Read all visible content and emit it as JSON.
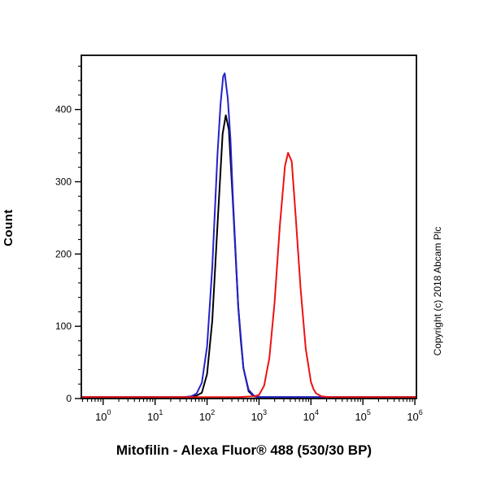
{
  "figure": {
    "ylabel": "Count",
    "xlabel": "Mitofilin - Alexa Fluor® 488 (530/30 BP)",
    "copyright": "Copyright (c) 2018 Abcam Plc"
  },
  "chart_data": {
    "type": "line",
    "subtype": "flow-cytometry-histogram-overlay",
    "title": "",
    "xlabel": "Mitofilin - Alexa Fluor® 488 (530/30 BP)",
    "ylabel": "Count",
    "x_scale": "log10",
    "xlim_log10": [
      -0.42,
      6.03
    ],
    "ylim": [
      0,
      475
    ],
    "x_tick_base": "10",
    "x_tick_exponents": [
      0,
      1,
      2,
      3,
      4,
      5,
      6
    ],
    "y_ticks": [
      0,
      100,
      200,
      300,
      400
    ],
    "y_minor_step": 20,
    "grid": false,
    "legend": false,
    "frame_color": "#000000",
    "peaks": [
      {
        "series": "blue-sample",
        "x_approx": 220,
        "peak_count": 450
      },
      {
        "series": "black-control",
        "x_approx": 230,
        "peak_count": 392
      },
      {
        "series": "red-sample",
        "x_approx": 3600,
        "peak_count": 340
      }
    ],
    "series": [
      {
        "name": "black-control",
        "color": "#000000",
        "points_log10x_count": [
          [
            -0.42,
            2
          ],
          [
            1.2,
            2
          ],
          [
            1.6,
            2
          ],
          [
            1.8,
            4
          ],
          [
            1.9,
            8
          ],
          [
            2.0,
            34
          ],
          [
            2.1,
            108
          ],
          [
            2.2,
            240
          ],
          [
            2.3,
            366
          ],
          [
            2.36,
            392
          ],
          [
            2.42,
            372
          ],
          [
            2.5,
            268
          ],
          [
            2.6,
            127
          ],
          [
            2.65,
            80
          ],
          [
            2.7,
            42
          ],
          [
            2.8,
            10
          ],
          [
            2.9,
            3
          ],
          [
            3.0,
            2
          ],
          [
            4.5,
            2
          ],
          [
            6.03,
            2
          ]
        ]
      },
      {
        "name": "blue-sample",
        "color": "#2222cc",
        "points_log10x_count": [
          [
            -0.42,
            2
          ],
          [
            1.2,
            2
          ],
          [
            1.55,
            2
          ],
          [
            1.7,
            3
          ],
          [
            1.8,
            7
          ],
          [
            1.9,
            22
          ],
          [
            2.0,
            72
          ],
          [
            2.1,
            182
          ],
          [
            2.2,
            338
          ],
          [
            2.26,
            408
          ],
          [
            2.31,
            446
          ],
          [
            2.34,
            450
          ],
          [
            2.4,
            415
          ],
          [
            2.45,
            360
          ],
          [
            2.5,
            275
          ],
          [
            2.6,
            128
          ],
          [
            2.7,
            42
          ],
          [
            2.8,
            12
          ],
          [
            2.9,
            4
          ],
          [
            3.0,
            2
          ],
          [
            4.5,
            2
          ],
          [
            6.03,
            2
          ]
        ]
      },
      {
        "name": "red-sample",
        "color": "#ee1111",
        "points_log10x_count": [
          [
            -0.42,
            2
          ],
          [
            2.0,
            2
          ],
          [
            2.6,
            2
          ],
          [
            2.9,
            3
          ],
          [
            3.0,
            5
          ],
          [
            3.1,
            18
          ],
          [
            3.2,
            56
          ],
          [
            3.3,
            133
          ],
          [
            3.4,
            238
          ],
          [
            3.5,
            322
          ],
          [
            3.56,
            340
          ],
          [
            3.63,
            328
          ],
          [
            3.7,
            258
          ],
          [
            3.8,
            152
          ],
          [
            3.9,
            69
          ],
          [
            4.0,
            23
          ],
          [
            4.05,
            13
          ],
          [
            4.1,
            7
          ],
          [
            4.2,
            3
          ],
          [
            4.35,
            2
          ],
          [
            6.03,
            2
          ]
        ]
      }
    ]
  }
}
